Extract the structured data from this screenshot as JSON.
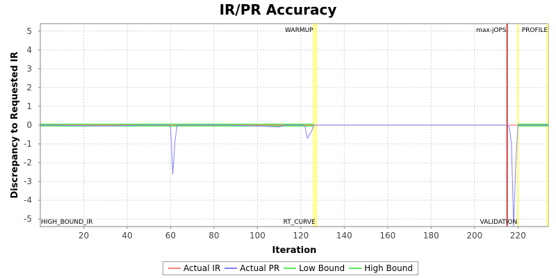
{
  "chart_data": {
    "type": "line",
    "title": "IR/PR Accuracy",
    "xlabel": "Iteration",
    "ylabel": "Discrepancy to Requested IR",
    "xlim": [
      0,
      234
    ],
    "ylim": [
      -5.4,
      5.4
    ],
    "xticks": [
      20,
      40,
      60,
      80,
      100,
      120,
      140,
      160,
      180,
      200,
      220
    ],
    "yticks": [
      5,
      4,
      3,
      2,
      1,
      0,
      -1,
      -2,
      -3,
      -4,
      -5
    ],
    "grid": true,
    "legend_position": "bottom",
    "series": [
      {
        "name": "Actual IR",
        "color": "#ff7f7f",
        "points": [
          [
            0,
            0
          ],
          [
            234,
            0
          ]
        ]
      },
      {
        "name": "Actual PR",
        "color": "#8080ff",
        "points": [
          [
            0,
            0
          ],
          [
            30,
            -0.05
          ],
          [
            55,
            0.02
          ],
          [
            59,
            0
          ],
          [
            60,
            -0.1
          ],
          [
            61,
            -2.6
          ],
          [
            62,
            -0.9
          ],
          [
            63,
            0
          ],
          [
            80,
            0.02
          ],
          [
            100,
            -0.05
          ],
          [
            110,
            -0.1
          ],
          [
            113,
            0
          ],
          [
            121,
            0
          ],
          [
            122,
            -0.1
          ],
          [
            123,
            -0.7
          ],
          [
            125,
            -0.3
          ],
          [
            126,
            0
          ],
          [
            215,
            0
          ],
          [
            216,
            -0.1
          ],
          [
            217,
            -1.0
          ],
          [
            218,
            -5.4
          ],
          [
            219,
            -2.0
          ],
          [
            220,
            0
          ],
          [
            234,
            0
          ]
        ]
      },
      {
        "name": "Low Bound",
        "color": "#55ee55",
        "points": [
          [
            0,
            -0.04
          ],
          [
            126,
            -0.04
          ],
          [
            220,
            -0.04
          ],
          [
            234,
            -0.04
          ]
        ]
      },
      {
        "name": "High Bound",
        "color": "#55ee55",
        "points": [
          [
            0,
            0.04
          ],
          [
            126,
            0.04
          ],
          [
            220,
            0.04
          ],
          [
            234,
            0.04
          ]
        ]
      }
    ],
    "bound_segments": [
      [
        0,
        126
      ],
      [
        220,
        234
      ]
    ],
    "markers": [
      {
        "label": "HIGH_BOUND_IR",
        "x": 0,
        "color": "#ffff55",
        "label_at": "bottom"
      },
      {
        "label": "WARMUP",
        "x": 126,
        "color": "#ffff55",
        "label_at": "top"
      },
      {
        "label": "RT_CURVE",
        "x": 127,
        "color": "#ffff55",
        "label_at": "bottom"
      },
      {
        "label": "max-jOPS",
        "x": 215,
        "color": "#cc0000",
        "label_at": "top"
      },
      {
        "label": "VALIDATION",
        "x": 220,
        "color": "#ffff55",
        "label_at": "bottom"
      },
      {
        "label": "PROFILE",
        "x": 234,
        "color": "#ffff55",
        "label_at": "top"
      }
    ]
  }
}
